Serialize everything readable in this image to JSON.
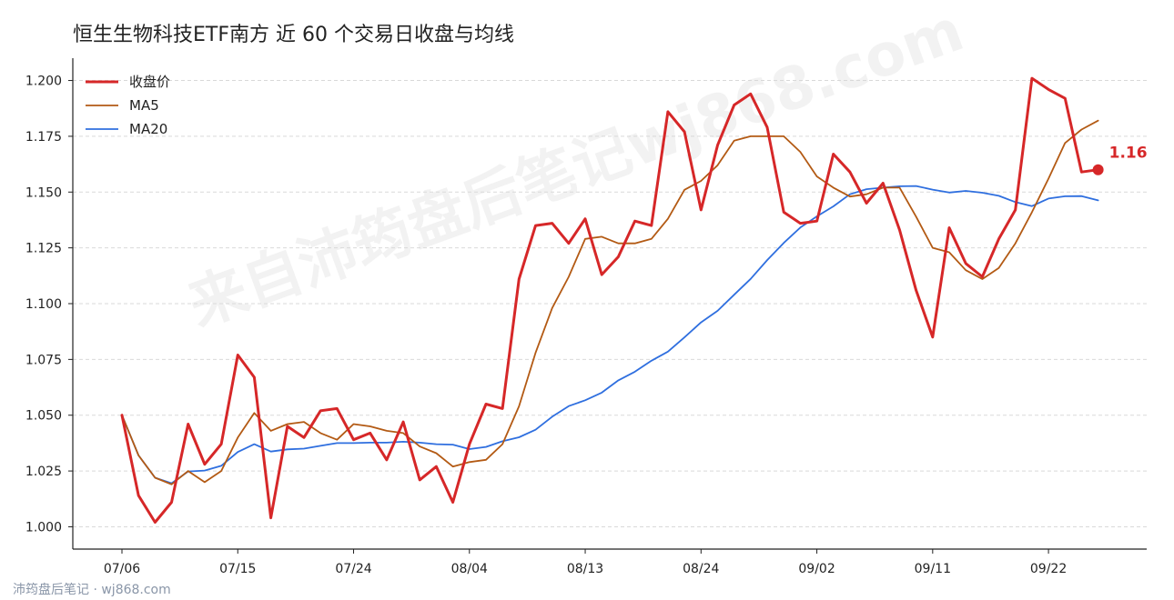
{
  "chart_data": {
    "type": "line",
    "title": "恒生生物科技ETF南方 近 60 个交易日收盘与均线",
    "xlabel": "",
    "ylabel": "",
    "ylim": [
      0.99,
      1.21
    ],
    "y_ticks": [
      1.0,
      1.025,
      1.05,
      1.075,
      1.1,
      1.125,
      1.15,
      1.175,
      1.2
    ],
    "x_tick_labels": [
      {
        "index": 0,
        "label": "07/06"
      },
      {
        "index": 7,
        "label": "07/15"
      },
      {
        "index": 14,
        "label": "07/24"
      },
      {
        "index": 21,
        "label": "08/04"
      },
      {
        "index": 28,
        "label": "08/13"
      },
      {
        "index": 35,
        "label": "08/24"
      },
      {
        "index": 42,
        "label": "09/02"
      },
      {
        "index": 49,
        "label": "09/11"
      },
      {
        "index": 56,
        "label": "09/22"
      }
    ],
    "grid": true,
    "legend_position": "top-left",
    "series": [
      {
        "name": "收盘价",
        "color": "#d62728",
        "values": [
          1.05,
          1.014,
          1.002,
          1.011,
          1.046,
          1.028,
          1.037,
          1.077,
          1.067,
          1.004,
          1.045,
          1.04,
          1.052,
          1.053,
          1.039,
          1.042,
          1.03,
          1.047,
          1.021,
          1.027,
          1.011,
          1.037,
          1.055,
          1.053,
          1.111,
          1.135,
          1.136,
          1.127,
          1.138,
          1.113,
          1.121,
          1.137,
          1.135,
          1.186,
          1.177,
          1.142,
          1.171,
          1.189,
          1.194,
          1.179,
          1.141,
          1.136,
          1.137,
          1.167,
          1.159,
          1.145,
          1.154,
          1.133,
          1.106,
          1.085,
          1.134,
          1.118,
          1.112,
          1.129,
          1.142,
          1.201,
          1.196,
          1.192,
          1.159,
          1.16
        ]
      },
      {
        "name": "MA5",
        "color": "#b35a14",
        "values": [
          1.05,
          1.032,
          1.022,
          1.019,
          1.025,
          1.02,
          1.025,
          1.04,
          1.051,
          1.043,
          1.046,
          1.047,
          1.042,
          1.039,
          1.046,
          1.045,
          1.043,
          1.042,
          1.036,
          1.033,
          1.027,
          1.029,
          1.03,
          1.037,
          1.054,
          1.078,
          1.098,
          1.112,
          1.129,
          1.13,
          1.127,
          1.127,
          1.129,
          1.138,
          1.151,
          1.155,
          1.162,
          1.173,
          1.175,
          1.175,
          1.175,
          1.168,
          1.157,
          1.152,
          1.148,
          1.149,
          1.152,
          1.152,
          1.139,
          1.125,
          1.123,
          1.115,
          1.111,
          1.116,
          1.127,
          1.141,
          1.156,
          1.172,
          1.178,
          1.182
        ]
      },
      {
        "name": "MA20",
        "color": "#2f6fdf",
        "values": [
          1.05,
          1.032,
          1.022,
          1.0195,
          1.0248,
          1.0252,
          1.0273,
          1.0335,
          1.037,
          1.0337,
          1.0347,
          1.035,
          1.0363,
          1.0375,
          1.0375,
          1.0377,
          1.0377,
          1.0381,
          1.0377,
          1.037,
          1.0368,
          1.0348,
          1.0358,
          1.0383,
          1.0401,
          1.0435,
          1.0493,
          1.0541,
          1.0567,
          1.0601,
          1.0656,
          1.0695,
          1.0744,
          1.0785,
          1.0849,
          1.0916,
          1.0968,
          1.104,
          1.1111,
          1.1195,
          1.1272,
          1.1341,
          1.1391,
          1.1436,
          1.149,
          1.1513,
          1.152,
          1.1526,
          1.1527,
          1.1511,
          1.1498,
          1.1505,
          1.1497,
          1.1483,
          1.1455,
          1.1437,
          1.1471,
          1.1481,
          1.1482,
          1.1463
        ]
      }
    ],
    "end_label": "1.16",
    "watermark": "来自沛筠盘后笔记wj868.com"
  },
  "footer": {
    "source": "沛筠盘后笔记 · wj868.com"
  }
}
